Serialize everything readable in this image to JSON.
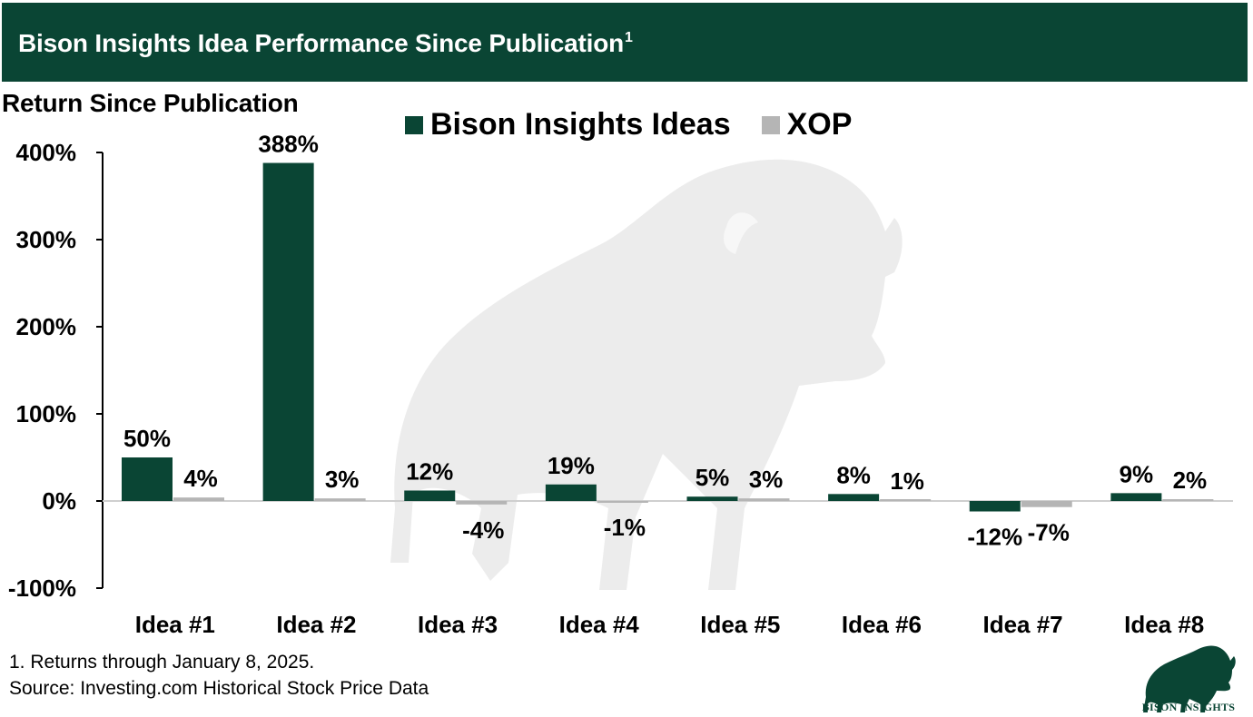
{
  "header": {
    "title": "Bison Insights Idea Performance Since Publication",
    "title_superscript": "1"
  },
  "colors": {
    "brand_green": "#0a4534",
    "xop_gray": "#b5b5b5",
    "watermark": "#ececec"
  },
  "chart_data": {
    "type": "bar",
    "title": "Bison Insights Idea Performance Since Publication",
    "ylabel": "Return Since Publication",
    "xlabel": "",
    "ylim": [
      -100,
      400
    ],
    "yticks": [
      -100,
      0,
      100,
      200,
      300,
      400
    ],
    "ytick_labels": [
      "-100%",
      "0%",
      "100%",
      "200%",
      "300%",
      "400%"
    ],
    "categories": [
      "Idea #1",
      "Idea #2",
      "Idea #3",
      "Idea #4",
      "Idea #5",
      "Idea #6",
      "Idea #7",
      "Idea #8"
    ],
    "series": [
      {
        "name": "Bison Insights Ideas",
        "color": "#0a4534",
        "values": [
          50,
          388,
          12,
          19,
          5,
          8,
          -12,
          9
        ],
        "labels": [
          "50%",
          "388%",
          "12%",
          "19%",
          "5%",
          "8%",
          "-12%",
          "9%"
        ]
      },
      {
        "name": "XOP",
        "color": "#b5b5b5",
        "values": [
          4,
          3,
          -4,
          -1,
          3,
          1,
          -7,
          2
        ],
        "labels": [
          "4%",
          "3%",
          "-4%",
          "-1%",
          "3%",
          "1%",
          "-7%",
          "2%"
        ]
      }
    ],
    "legend": "top-center",
    "grid": false
  },
  "footnotes": {
    "note1": "1. Returns through January 8, 2025.",
    "source": "Source: Investing.com Historical Stock Price Data"
  },
  "logo": {
    "icon": "bison-icon",
    "text": "BISON INSIGHTS"
  }
}
